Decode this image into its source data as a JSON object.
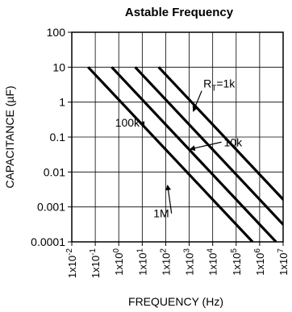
{
  "chart_data": {
    "type": "line",
    "title": "Astable Frequency",
    "xlabel": "FREQUENCY (Hz)",
    "ylabel": "CAPACITANCE (µF)",
    "x_scale": "log",
    "y_scale": "log",
    "xlim": [
      0.01,
      10000000
    ],
    "ylim": [
      0.0001,
      100
    ],
    "grid": true,
    "x_ticks": [
      {
        "value": 0.01,
        "base": "1x10",
        "exp": "-2"
      },
      {
        "value": 0.1,
        "base": "1x10",
        "exp": "-1"
      },
      {
        "value": 1,
        "base": "1x10",
        "exp": "0"
      },
      {
        "value": 10,
        "base": "1x10",
        "exp": "1"
      },
      {
        "value": 100,
        "base": "1x10",
        "exp": "2"
      },
      {
        "value": 1000,
        "base": "1x10",
        "exp": "3"
      },
      {
        "value": 10000,
        "base": "1x10",
        "exp": "4"
      },
      {
        "value": 100000,
        "base": "1x10",
        "exp": "5"
      },
      {
        "value": 1000000,
        "base": "1x10",
        "exp": "6"
      },
      {
        "value": 10000000,
        "base": "1x10",
        "exp": "7"
      }
    ],
    "y_ticks": [
      {
        "value": 100,
        "label": "100"
      },
      {
        "value": 10,
        "label": "10"
      },
      {
        "value": 1,
        "label": "1"
      },
      {
        "value": 0.1,
        "label": "0.1"
      },
      {
        "value": 0.01,
        "label": "0.01"
      },
      {
        "value": 0.001,
        "label": "0.001"
      },
      {
        "value": 0.0001,
        "label": "0.0001"
      }
    ],
    "series": [
      {
        "label_main": "1M",
        "label_sub": "",
        "points": [
          [
            0.05,
            10
          ],
          [
            500000,
            0.0001
          ]
        ],
        "label_x": 30,
        "label_y": 0.0005,
        "arrow_to_x": 120,
        "arrow_to_y": 0.00413
      },
      {
        "label_main": "100k",
        "label_sub": "",
        "points": [
          [
            0.5,
            10
          ],
          [
            5000000,
            0.0001
          ]
        ],
        "label_x": 0.7,
        "label_y": 0.2,
        "arrow_to_x": 12,
        "arrow_to_y": 0.2
      },
      {
        "label_main": "10k",
        "label_sub": "",
        "points": [
          [
            5,
            10
          ],
          [
            50000000,
            0.0001
          ]
        ],
        "label_x": 30000,
        "label_y": 0.055,
        "arrow_to_x": 1100,
        "arrow_to_y": 0.045
      },
      {
        "label_main": "R",
        "label_sub": "T",
        "label_tail": "=1k",
        "points": [
          [
            50,
            10
          ],
          [
            500000000,
            0.0001
          ]
        ],
        "label_x": 4000,
        "label_y": 2.6,
        "arrow_to_x": 1500,
        "arrow_to_y": 0.55
      }
    ]
  }
}
